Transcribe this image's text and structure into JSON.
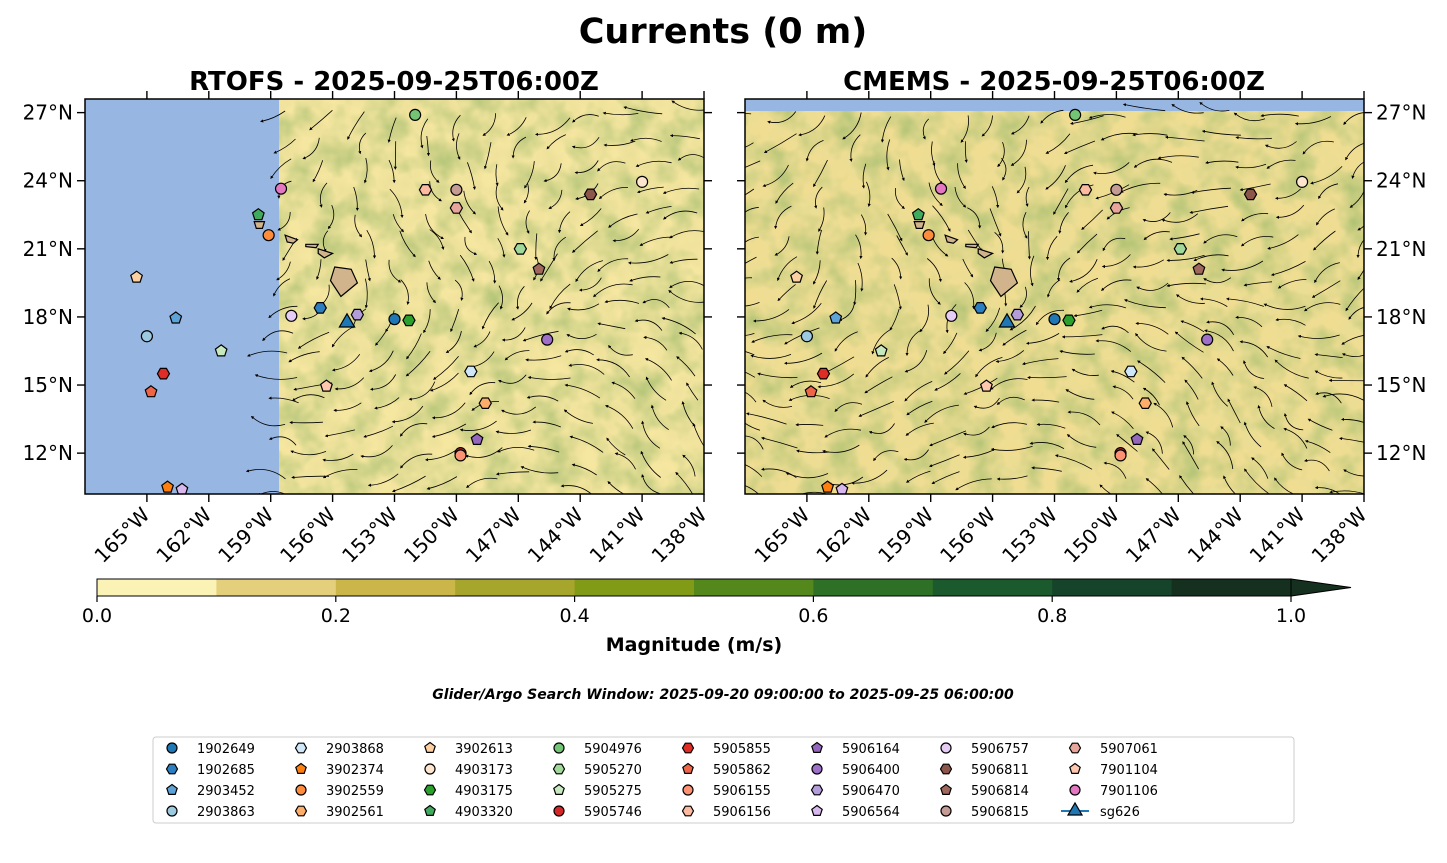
{
  "chart_data": {
    "type": "map",
    "title": "Currents (0 m)",
    "panels": [
      {
        "title": "RTOFS - 2025-09-25T06:00Z",
        "model": "RTOFS",
        "land_mask_west_of": "-157.5"
      },
      {
        "title": "CMEMS - 2025-09-25T06:00Z",
        "model": "CMEMS"
      }
    ],
    "lon_range": [
      -168,
      -138
    ],
    "lat_range": [
      10.2,
      27.6
    ],
    "x_ticks": [
      {
        "lon": -165,
        "label": "165°W"
      },
      {
        "lon": -162,
        "label": "162°W"
      },
      {
        "lon": -159,
        "label": "159°W"
      },
      {
        "lon": -156,
        "label": "156°W"
      },
      {
        "lon": -153,
        "label": "153°W"
      },
      {
        "lon": -150,
        "label": "150°W"
      },
      {
        "lon": -147,
        "label": "147°W"
      },
      {
        "lon": -144,
        "label": "144°W"
      },
      {
        "lon": -141,
        "label": "141°W"
      },
      {
        "lon": -138,
        "label": "138°W"
      }
    ],
    "y_ticks": [
      {
        "lat": 12,
        "label": "12°N"
      },
      {
        "lat": 15,
        "label": "15°N"
      },
      {
        "lat": 18,
        "label": "18°N"
      },
      {
        "lat": 21,
        "label": "21°N"
      },
      {
        "lat": 24,
        "label": "24°N"
      },
      {
        "lat": 27,
        "label": "27°N"
      }
    ],
    "colorbar": {
      "label": "Magnitude (m/s)",
      "levels": [
        0.0,
        0.1,
        0.2,
        0.3,
        0.4,
        0.5,
        0.6,
        0.7,
        0.8,
        0.9,
        1.0
      ],
      "colors": [
        "#fbf2b6",
        "#e4d07c",
        "#cbb64a",
        "#a6a52c",
        "#829b16",
        "#55881c",
        "#2e7025",
        "#1b5a2c",
        "#16442a",
        "#16301f"
      ],
      "ticks": [
        {
          "value": 0.0,
          "label": "0.0"
        },
        {
          "value": 0.2,
          "label": "0.2"
        },
        {
          "value": 0.4,
          "label": "0.4"
        },
        {
          "value": 0.6,
          "label": "0.6"
        },
        {
          "value": 0.8,
          "label": "0.8"
        },
        {
          "value": 1.0,
          "label": "1.0"
        }
      ],
      "extend": "max"
    },
    "search_window": "Glider/Argo Search Window: 2025-09-20 09:00:00 to 2025-09-25 06:00:00",
    "floats": [
      {
        "id": "1902649",
        "marker": "circle",
        "color": "#1f77b4",
        "lon": -153.0,
        "lat": 17.9
      },
      {
        "id": "1902685",
        "marker": "hexagon",
        "color": "#2b7fc0",
        "lon": -156.6,
        "lat": 18.4
      },
      {
        "id": "2903452",
        "marker": "pentagon",
        "color": "#5ea3d8",
        "lon": -163.6,
        "lat": 17.95
      },
      {
        "id": "2903863",
        "marker": "circle",
        "color": "#9ecae1",
        "lon": -165.0,
        "lat": 17.15
      },
      {
        "id": "2903868",
        "marker": "hexagon",
        "color": "#cfe7f7",
        "lon": -149.3,
        "lat": 15.6
      },
      {
        "id": "3902374",
        "marker": "pentagon",
        "color": "#ff7f0e",
        "lon": -164.0,
        "lat": 10.5
      },
      {
        "id": "3902559",
        "marker": "circle",
        "color": "#fd8d3c",
        "lon": -159.1,
        "lat": 21.6
      },
      {
        "id": "3902561",
        "marker": "hexagon",
        "color": "#fdae6b",
        "lon": -148.6,
        "lat": 14.2
      },
      {
        "id": "3902613",
        "marker": "pentagon",
        "color": "#fdd0a2",
        "lon": -165.5,
        "lat": 19.75
      },
      {
        "id": "4903173",
        "marker": "circle",
        "color": "#fee6ce",
        "lon": -141.0,
        "lat": 23.95
      },
      {
        "id": "4903175",
        "marker": "hexagon",
        "color": "#2ca02c",
        "lon": -152.3,
        "lat": 17.85
      },
      {
        "id": "4903320",
        "marker": "pentagon",
        "color": "#41ab5d",
        "lon": -159.6,
        "lat": 22.5
      },
      {
        "id": "5904976",
        "marker": "circle",
        "color": "#74c476",
        "lon": -152.0,
        "lat": 26.9
      },
      {
        "id": "5905270",
        "marker": "hexagon",
        "color": "#a1d99b",
        "lon": -146.9,
        "lat": 21.0
      },
      {
        "id": "5905275",
        "marker": "pentagon",
        "color": "#c7e9c0",
        "lon": -161.4,
        "lat": 16.5
      },
      {
        "id": "5905746",
        "marker": "circle",
        "color": "#d62728",
        "lon": -149.8,
        "lat": 12.0
      },
      {
        "id": "5905855",
        "marker": "hexagon",
        "color": "#de2d26",
        "lon": -164.2,
        "lat": 15.5
      },
      {
        "id": "5905862",
        "marker": "pentagon",
        "color": "#ef6548",
        "lon": -164.8,
        "lat": 14.7
      },
      {
        "id": "5906155",
        "marker": "circle",
        "color": "#fc9272",
        "lon": -149.8,
        "lat": 11.9
      },
      {
        "id": "5906156",
        "marker": "hexagon",
        "color": "#fcbba1",
        "lon": -151.5,
        "lat": 23.6
      },
      {
        "id": "5906164",
        "marker": "pentagon",
        "color": "#9467bd",
        "lon": -149.0,
        "lat": 12.6
      },
      {
        "id": "5906400",
        "marker": "circle",
        "color": "#9e70c8",
        "lon": -145.6,
        "lat": 17.0
      },
      {
        "id": "5906470",
        "marker": "hexagon",
        "color": "#b39ddb",
        "lon": -154.8,
        "lat": 18.1
      },
      {
        "id": "5906564",
        "marker": "pentagon",
        "color": "#d9b8f0",
        "lon": -163.3,
        "lat": 10.4
      },
      {
        "id": "5906757",
        "marker": "circle",
        "color": "#e4ccf5",
        "lon": -158.0,
        "lat": 18.05
      },
      {
        "id": "5906811",
        "marker": "hexagon",
        "color": "#8c564b",
        "lon": -143.5,
        "lat": 23.4
      },
      {
        "id": "5906814",
        "marker": "pentagon",
        "color": "#a0685c",
        "lon": -146.0,
        "lat": 20.1
      },
      {
        "id": "5906815",
        "marker": "circle",
        "color": "#c49c94",
        "lon": -150.0,
        "lat": 23.6
      },
      {
        "id": "5907061",
        "marker": "hexagon",
        "color": "#e8a59b",
        "lon": -150.0,
        "lat": 22.8
      },
      {
        "id": "7901104",
        "marker": "pentagon",
        "color": "#ffc7ad",
        "lon": -156.3,
        "lat": 14.95
      },
      {
        "id": "7901106",
        "marker": "circle",
        "color": "#e377c2",
        "lon": -158.5,
        "lat": 23.65
      },
      {
        "id": "sg626",
        "marker": "triangle",
        "color": "#1f77b4",
        "lon": -155.3,
        "lat": 17.75,
        "glider": true
      }
    ]
  }
}
